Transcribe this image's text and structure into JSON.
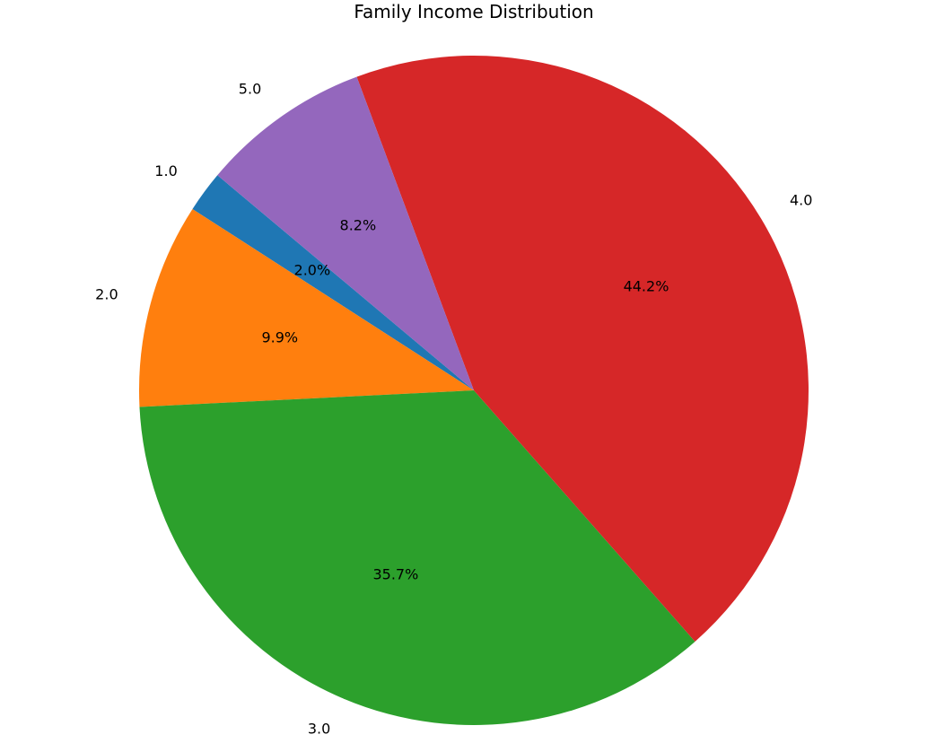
{
  "chart_data": {
    "type": "pie",
    "title": "Family Income Distribution",
    "categories": [
      "1.0",
      "2.0",
      "3.0",
      "4.0",
      "5.0"
    ],
    "values": [
      2.0,
      9.9,
      35.7,
      44.2,
      8.2
    ],
    "percent_labels": [
      "2.0%",
      "9.9%",
      "35.7%",
      "44.2%",
      "8.2%"
    ],
    "colors": [
      "#1f77b4",
      "#ff7f0e",
      "#2ca02c",
      "#d62728",
      "#9467bd"
    ],
    "start_angle_deg": 140,
    "direction": "counterclockwise",
    "legend": "none"
  }
}
